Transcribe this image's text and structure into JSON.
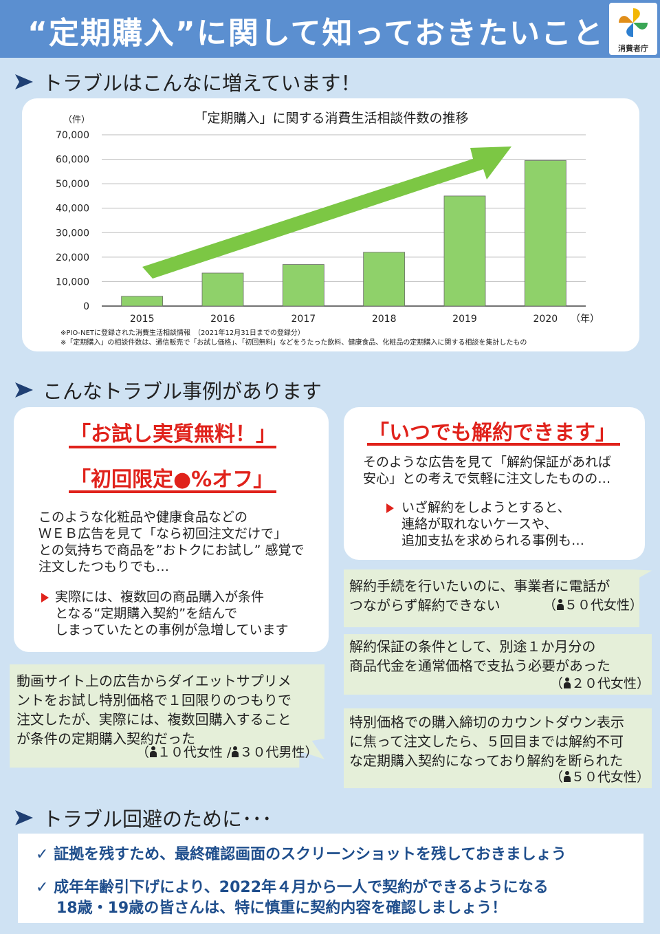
{
  "header": {
    "title": "“定期購入”に関して知っておきたいこと",
    "logo_text": "消費者庁"
  },
  "section1": {
    "heading": "トラブルはこんなに増えています！"
  },
  "chart_data": {
    "type": "bar",
    "title": "「定期購入」に関する消費生活相談件数の推移",
    "y_unit": "（件）",
    "x_unit": "（年）",
    "categories": [
      "2015",
      "2016",
      "2017",
      "2018",
      "2019",
      "2020"
    ],
    "values": [
      4000,
      13500,
      17000,
      22000,
      45000,
      59500
    ],
    "yticks": [
      "70,000",
      "60,000",
      "50,000",
      "40,000",
      "30,000",
      "20,000",
      "10,000",
      "0"
    ],
    "ylim": [
      0,
      70000
    ],
    "bar_color": "#8fd16a",
    "trend_arrow_color": "#7cc744",
    "notes": [
      "※PIO-NETに登録された消費生活相談情報　（2021年12月31日までの登録分）",
      "※「定期購入」の相談件数は、通信販売で「お試し価格」、「初回無料」などをうたった飲料、健康食品、化粧品の定期購入に関する相談を集計したもの"
    ]
  },
  "section2": {
    "heading": "こんなトラブル事例があります"
  },
  "case_left": {
    "title1": "「お試し実質無料！」",
    "title2": "「初回限定●%オフ」",
    "body": [
      "このような化粧品や健康食品などの",
      "ＷＥＢ広告を見て「なら初回注文だけで」",
      "との気持ちで商品を”おトクにお試し” 感覚で",
      "注文したつもりでも…"
    ],
    "bullet": [
      "実際には、複数回の商品購入が条件",
      "となる“定期購入契約”を結んで",
      "しまっていたとの事例が急増しています"
    ]
  },
  "case_right": {
    "title": "「いつでも解約できます」",
    "body": [
      "そのような広告を見て「解約保証があれば",
      "安心」との考えで気軽に注文したものの…"
    ],
    "bullet": [
      "いざ解約をしようとすると、",
      "連絡が取れないケースや、",
      "追加支払を求められる事例も…"
    ]
  },
  "voices": [
    {
      "lines": [
        "動画サイト上の広告からダイエットサプリメ",
        "ントをお試し特別価格で１回限りのつもりで",
        "注文したが、実際には、複数回購入すること",
        "が条件の定期購入契約だった"
      ],
      "attribution": [
        "（",
        "１０代女性 /",
        "３０代男性）"
      ]
    },
    {
      "lines": [
        "解約手続を行いたいのに、事業者に電話が",
        "つながらず解約できない"
      ],
      "attribution": [
        "（",
        "５０代女性）"
      ]
    },
    {
      "lines": [
        "解約保証の条件として、別途１か月分の",
        "商品代金を通常価格で支払う必要があった"
      ],
      "attribution": [
        "（",
        "２０代女性）"
      ]
    },
    {
      "lines": [
        "特別価格での購入締切のカウントダウン表示",
        "に焦って注文したら、５回目までは解約不可",
        "な定期購入契約になっており解約を断られた"
      ],
      "attribution": [
        "（",
        "５０代女性）"
      ]
    }
  ],
  "section3": {
    "heading": "トラブル回避のために･･･"
  },
  "tips": [
    {
      "lines": [
        "証拠を残すため、最終確認画面のスクリーンショットを残しておきましょう"
      ]
    },
    {
      "lines": [
        "成年年齢引下げにより、2022年４月から一人で契約ができるようになる",
        "18歳・19歳の皆さんは、特に慎重に契約内容を確認しましょう！"
      ]
    }
  ],
  "check_symbol": "✓"
}
